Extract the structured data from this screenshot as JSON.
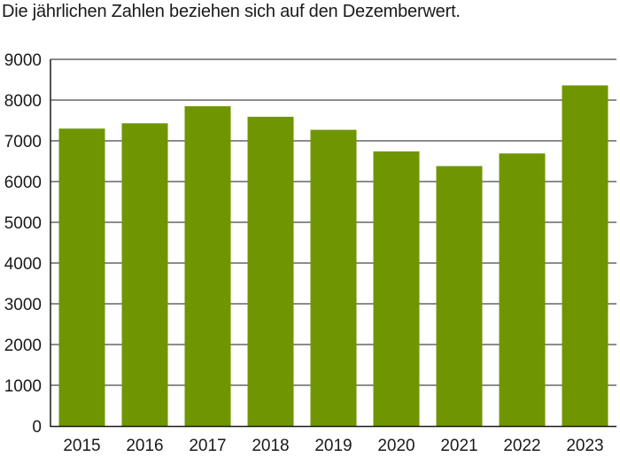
{
  "chart_data": {
    "type": "bar",
    "note": "Die jährlichen Zahlen beziehen sich auf den Dezemberwert.",
    "title": "",
    "xlabel": "",
    "ylabel": "",
    "categories": [
      "2015",
      "2016",
      "2017",
      "2018",
      "2019",
      "2020",
      "2021",
      "2022",
      "2023"
    ],
    "values": [
      7300,
      7430,
      7850,
      7590,
      7270,
      6740,
      6380,
      6690,
      8360
    ],
    "ylim": [
      0,
      9000
    ],
    "yticks": [
      0,
      1000,
      2000,
      3000,
      4000,
      5000,
      6000,
      7000,
      8000,
      9000
    ],
    "grid": true,
    "bar_color": "#6f9600",
    "grid_color": "#1a1a1a"
  }
}
